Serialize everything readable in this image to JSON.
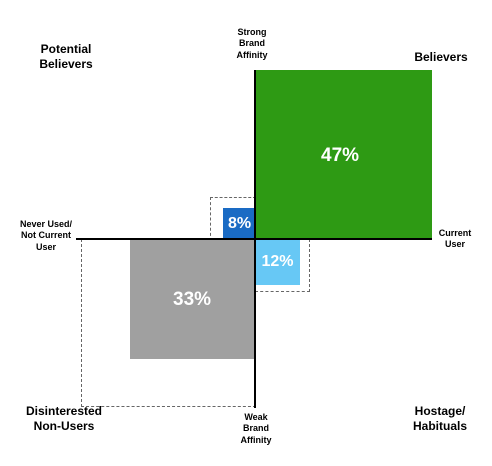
{
  "quadrants": {
    "top_left": "Potential\nBelievers",
    "top_right": "Believers",
    "bottom_left": "Disinterested\nNon-Users",
    "bottom_right": "Hostage/\nHabituals"
  },
  "axes": {
    "top": "Strong\nBrand\nAffinity",
    "bottom": "Weak\nBrand\nAffinity",
    "left": "Never Used/\nNot Current\nUser",
    "right": "Current\nUser"
  },
  "segments": {
    "believers": {
      "value": "47%",
      "color": "#2e9a14"
    },
    "disinterested": {
      "value": "33%",
      "color": "#a0a0a0"
    },
    "hostage": {
      "value": "12%",
      "color": "#67c8f5"
    },
    "potential": {
      "value": "8%",
      "color": "#1a6bc4"
    }
  }
}
